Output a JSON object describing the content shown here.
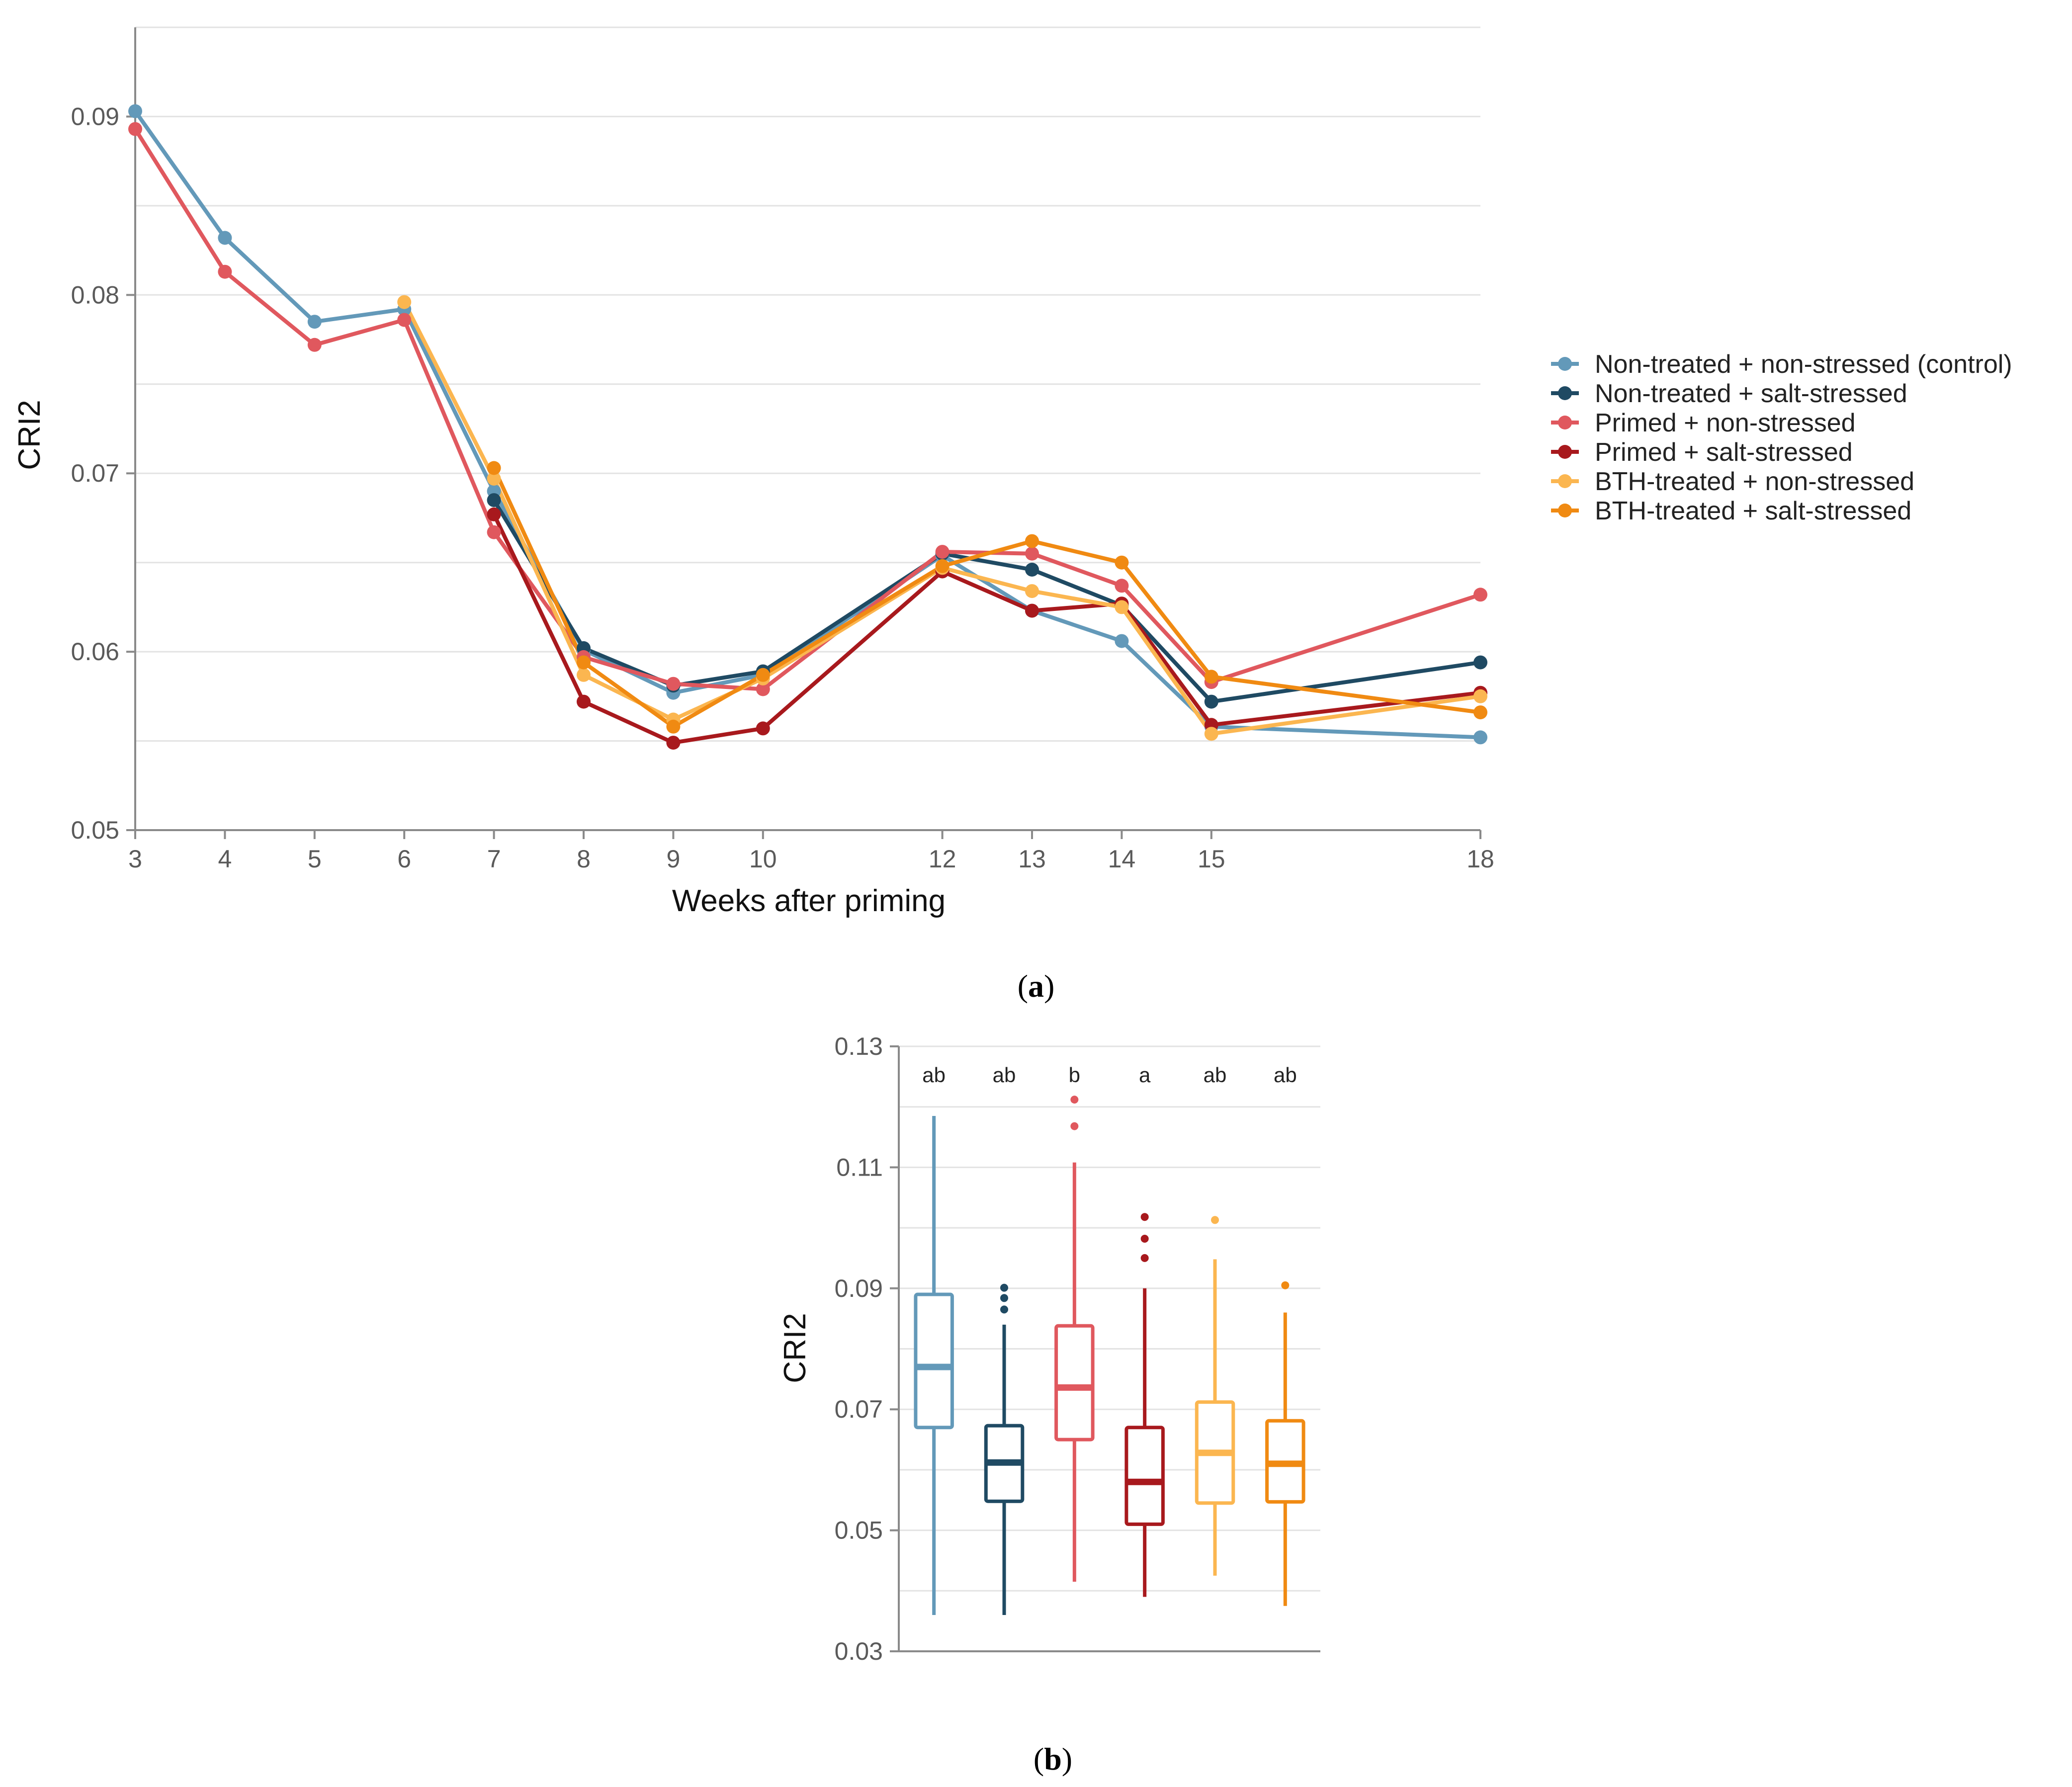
{
  "captions": {
    "a": "a",
    "b": "b"
  },
  "legend": [
    {
      "label": "Non-treated + non-stressed (control)",
      "color": "#6399b9"
    },
    {
      "label": "Non-treated + salt-stressed",
      "color": "#1f4a63"
    },
    {
      "label": "Primed + non-stressed",
      "color": "#e0585e"
    },
    {
      "label": "Primed + salt-stressed",
      "color": "#a8191d"
    },
    {
      "label": "BTH-treated + non-stressed",
      "color": "#fbb650"
    },
    {
      "label": "BTH-treated + salt-stressed",
      "color": "#f08a12"
    }
  ],
  "chart_data": [
    {
      "type": "line",
      "xlabel": "Weeks after priming",
      "ylabel": "CRI2",
      "xlim": [
        3,
        18
      ],
      "ylim": [
        0.05,
        0.095
      ],
      "x_ticks": [
        3,
        4,
        5,
        6,
        7,
        8,
        9,
        10,
        12,
        13,
        14,
        15,
        18
      ],
      "y_ticks": [
        0.05,
        0.06,
        0.07,
        0.08,
        0.09
      ],
      "y_tick_labels": [
        "0.05",
        "0.06",
        "0.07",
        "0.08",
        "0.09"
      ],
      "grid": true,
      "legend_position": "right",
      "series": [
        {
          "name": "Non-treated + non-stressed (control)",
          "color": "#6399b9",
          "x": [
            3,
            4,
            5,
            6,
            7,
            8,
            9,
            10,
            12,
            13,
            14,
            15,
            18
          ],
          "y": [
            0.0903,
            0.0832,
            0.0785,
            0.0792,
            0.069,
            0.0601,
            0.0577,
            0.0587,
            0.0654,
            0.0623,
            0.0606,
            0.0558,
            0.0552
          ]
        },
        {
          "name": "Non-treated + salt-stressed",
          "color": "#1f4a63",
          "x": [
            7,
            8,
            9,
            10,
            12,
            13,
            14,
            15,
            18
          ],
          "y": [
            0.0685,
            0.0602,
            0.0581,
            0.0589,
            0.0655,
            0.0646,
            0.0626,
            0.0572,
            0.0594
          ]
        },
        {
          "name": "Primed + non-stressed",
          "color": "#e0585e",
          "x": [
            3,
            4,
            5,
            6,
            7,
            8,
            9,
            10,
            12,
            13,
            14,
            15,
            18
          ],
          "y": [
            0.0893,
            0.0813,
            0.0772,
            0.0786,
            0.0667,
            0.0597,
            0.0582,
            0.0579,
            0.0656,
            0.0655,
            0.0637,
            0.0583,
            0.0632
          ]
        },
        {
          "name": "Primed + salt-stressed",
          "color": "#a8191d",
          "x": [
            7,
            8,
            9,
            10,
            12,
            13,
            14,
            15,
            18
          ],
          "y": [
            0.0677,
            0.0572,
            0.0549,
            0.0557,
            0.0645,
            0.0623,
            0.0627,
            0.0559,
            0.0577
          ]
        },
        {
          "name": "BTH-treated + non-stressed",
          "color": "#fbb650",
          "x": [
            6,
            7,
            8,
            9,
            10,
            12,
            13,
            14,
            15,
            18
          ],
          "y": [
            0.0796,
            0.0697,
            0.0587,
            0.0562,
            0.0585,
            0.0647,
            0.0634,
            0.0625,
            0.0554,
            0.0575
          ]
        },
        {
          "name": "BTH-treated + salt-stressed",
          "color": "#f08a12",
          "x": [
            7,
            8,
            9,
            10,
            12,
            13,
            14,
            15,
            18
          ],
          "y": [
            0.0703,
            0.0594,
            0.0558,
            0.0587,
            0.0648,
            0.0662,
            0.065,
            0.0586,
            0.0566
          ]
        }
      ]
    },
    {
      "type": "box",
      "ylabel": "CRI2",
      "ylim": [
        0.03,
        0.13
      ],
      "y_ticks": [
        0.03,
        0.05,
        0.07,
        0.09,
        0.11,
        0.13
      ],
      "y_tick_labels": [
        "0.03",
        "0.05",
        "0.07",
        "0.09",
        "0.11",
        "0.13"
      ],
      "grid": true,
      "boxes": [
        {
          "group": "Non-treated + non-stressed (control)",
          "color": "#6399b9",
          "letter": "ab",
          "whisker_low": 0.036,
          "q1": 0.067,
          "median": 0.077,
          "q3": 0.089,
          "whisker_high": 0.1185,
          "outliers": []
        },
        {
          "group": "Non-treated + salt-stressed",
          "color": "#1f4a63",
          "letter": "ab",
          "whisker_low": 0.036,
          "q1": 0.0548,
          "median": 0.0612,
          "q3": 0.0673,
          "whisker_high": 0.084,
          "outliers": [
            0.0865,
            0.0884,
            0.0901
          ]
        },
        {
          "group": "Primed + non-stressed",
          "color": "#e0585e",
          "letter": "b",
          "whisker_low": 0.0415,
          "q1": 0.065,
          "median": 0.0736,
          "q3": 0.0838,
          "whisker_high": 0.1108,
          "outliers": [
            0.1168,
            0.1212
          ]
        },
        {
          "group": "Primed + salt-stressed",
          "color": "#a8191d",
          "letter": "a",
          "whisker_low": 0.039,
          "q1": 0.051,
          "median": 0.058,
          "q3": 0.067,
          "whisker_high": 0.09,
          "outliers": [
            0.095,
            0.0982,
            0.1018
          ]
        },
        {
          "group": "BTH-treated + non-stressed",
          "color": "#fbb650",
          "letter": "ab",
          "whisker_low": 0.0425,
          "q1": 0.0545,
          "median": 0.0628,
          "q3": 0.0712,
          "whisker_high": 0.0948,
          "outliers": [
            0.1013
          ]
        },
        {
          "group": "BTH-treated + salt-stressed",
          "color": "#f08a12",
          "letter": "ab",
          "whisker_low": 0.0375,
          "q1": 0.0547,
          "median": 0.061,
          "q3": 0.0681,
          "whisker_high": 0.086,
          "outliers": [
            0.0905
          ]
        }
      ]
    }
  ]
}
